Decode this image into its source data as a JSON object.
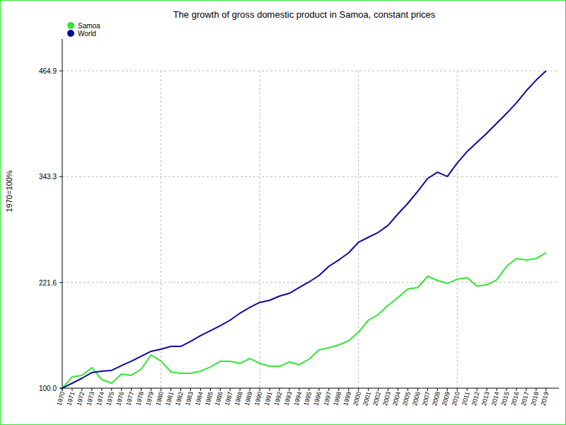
{
  "chart_data": {
    "type": "line",
    "title": "The growth of gross domestic product in Samoa, constant prices",
    "y_label": "1970=100%",
    "x": [
      1970,
      1971,
      1972,
      1973,
      1974,
      1975,
      1976,
      1977,
      1978,
      1979,
      1980,
      1981,
      1982,
      1983,
      1984,
      1985,
      1986,
      1987,
      1988,
      1989,
      1990,
      1991,
      1992,
      1993,
      1994,
      1995,
      1996,
      1997,
      1998,
      1999,
      2000,
      2001,
      2002,
      2003,
      2004,
      2005,
      2006,
      2007,
      2008,
      2009,
      2010,
      2011,
      2012,
      2013,
      2014,
      2015,
      2016,
      2017,
      2018,
      2019
    ],
    "series": [
      {
        "name": "Samoa",
        "color": "#33e633",
        "values": [
          100,
          113,
          114.7,
          123.6,
          109.8,
          105.7,
          116.3,
          114.7,
          122,
          138.3,
          131,
          118.7,
          117.1,
          117.1,
          119.5,
          124.4,
          131,
          131,
          128.5,
          134.2,
          128.5,
          125.2,
          125.2,
          130.1,
          126.9,
          133.4,
          144,
          146.4,
          149.7,
          154.6,
          164.3,
          178.2,
          184.7,
          195.3,
          204.3,
          214,
          215.7,
          228.7,
          223.8,
          220.5,
          225.4,
          227.1,
          217.3,
          218.9,
          224.6,
          240.1,
          249.1,
          247.4,
          249.1,
          255.6
        ]
      },
      {
        "name": "World",
        "color": "#0a0aa0",
        "values": [
          100,
          105.7,
          111.4,
          118,
          119.5,
          120.4,
          126,
          131,
          136.7,
          142.4,
          144.8,
          148,
          148,
          153.8,
          160.3,
          166,
          171.7,
          178.2,
          186.3,
          192.9,
          198.6,
          201,
          205.9,
          209.1,
          215.7,
          222.2,
          229.5,
          240.1,
          247.4,
          255.6,
          267.8,
          273.5,
          279.2,
          287.3,
          300.4,
          312.6,
          326.4,
          341.1,
          348.4,
          343.5,
          359,
          372,
          382.6,
          393.2,
          404.6,
          416,
          428.2,
          442.1,
          454.3,
          464.9
        ]
      }
    ],
    "xlim": [
      1970,
      2020.3
    ],
    "xticks": [
      1970,
      1971,
      1972,
      1973,
      1974,
      1975,
      1976,
      1977,
      1978,
      1979,
      1980,
      1981,
      1982,
      1983,
      1984,
      1985,
      1986,
      1987,
      1988,
      1989,
      1990,
      1991,
      1992,
      1993,
      1994,
      1995,
      1996,
      1997,
      1998,
      1999,
      2000,
      2001,
      2002,
      2003,
      2004,
      2005,
      2006,
      2007,
      2008,
      2009,
      2010,
      2011,
      2012,
      2013,
      2014,
      2015,
      2016,
      2017,
      2018,
      2019
    ],
    "ylim": [
      100,
      501.6
    ],
    "yticks": [
      {
        "value": 100,
        "label": "100.0"
      },
      221.6,
      343.3,
      464.9
    ],
    "grid": true,
    "legend": "upper left"
  }
}
